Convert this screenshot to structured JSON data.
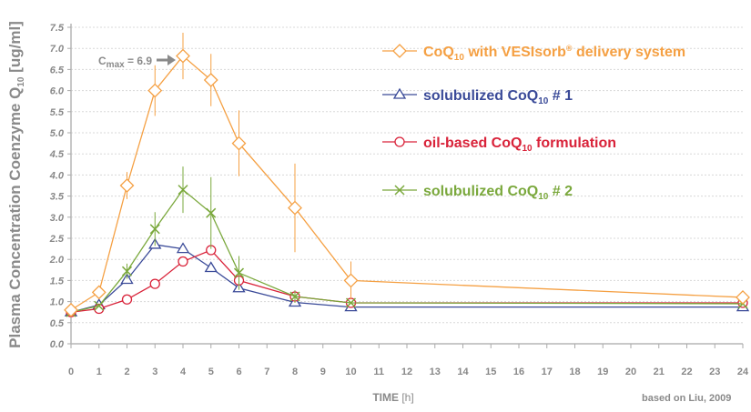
{
  "chart_data": {
    "type": "line",
    "ylabel_parts": [
      "Plasma Concentration Coenzyme Q",
      "10",
      " [ug/ml]"
    ],
    "xlabel_parts": [
      "TIME ",
      "[h]"
    ],
    "source": "based on Liu, 2009",
    "annotation_parts": [
      "C",
      "max",
      " = 6.9"
    ],
    "xlim": [
      0,
      24
    ],
    "ylim": [
      0,
      7.5
    ],
    "x_ticks": [
      "0",
      "1",
      "2",
      "3",
      "4",
      "5",
      "6",
      "7",
      "8",
      "9",
      "10",
      "11",
      "12",
      "13",
      "14",
      "15",
      "16",
      "17",
      "18",
      "19",
      "20",
      "21",
      "22",
      "23",
      "24"
    ],
    "y_ticks": [
      "0.0",
      "0.5",
      "1.0",
      "1.5",
      "2.0",
      "2.5",
      "3.0",
      "3.5",
      "4.0",
      "4.5",
      "5.0",
      "5.5",
      "6.0",
      "6.5",
      "7.0",
      "7.5"
    ],
    "grid": "horizontal",
    "legend_position": "top-right",
    "series": [
      {
        "name_parts": [
          "CoQ",
          "10",
          " with VESIsorb",
          "®",
          " delivery system"
        ],
        "color": "#f5a043",
        "marker": "diamond",
        "x": [
          0,
          1,
          2,
          3,
          4,
          5,
          6,
          8,
          10,
          24
        ],
        "y": [
          0.8,
          1.22,
          3.75,
          6.0,
          6.82,
          6.25,
          4.75,
          3.22,
          1.5,
          1.1
        ],
        "err": [
          0,
          0.12,
          0.32,
          0.6,
          0.55,
          0.62,
          0.78,
          1.05,
          0.45,
          0.08
        ]
      },
      {
        "name_parts": [
          "solubulized CoQ",
          "10",
          " # 1"
        ],
        "color": "#3a4a98",
        "marker": "triangle",
        "x": [
          0,
          1,
          2,
          3,
          4,
          5,
          6,
          8,
          10,
          24
        ],
        "y": [
          0.75,
          0.92,
          1.52,
          2.35,
          2.25,
          1.8,
          1.32,
          0.98,
          0.87,
          0.87
        ],
        "err": []
      },
      {
        "name_parts": [
          "oil-based CoQ",
          "10",
          " formulation"
        ],
        "color": "#d9233a",
        "marker": "circle",
        "x": [
          0,
          1,
          2,
          3,
          4,
          5,
          6,
          8,
          10,
          24
        ],
        "y": [
          0.75,
          0.83,
          1.05,
          1.42,
          1.95,
          2.22,
          1.5,
          1.12,
          0.97,
          0.97
        ],
        "err": []
      },
      {
        "name_parts": [
          "solubulized CoQ",
          "10",
          " # 2"
        ],
        "color": "#7aa83c",
        "marker": "x",
        "x": [
          0,
          1,
          2,
          3,
          4,
          5,
          6,
          8,
          10,
          24
        ],
        "y": [
          0.75,
          0.9,
          1.72,
          2.72,
          3.65,
          3.1,
          1.68,
          1.12,
          0.97,
          0.95
        ],
        "err": [
          0,
          0,
          0.18,
          0.4,
          0.55,
          0.85,
          0.4,
          0.15,
          0,
          0
        ]
      }
    ]
  }
}
